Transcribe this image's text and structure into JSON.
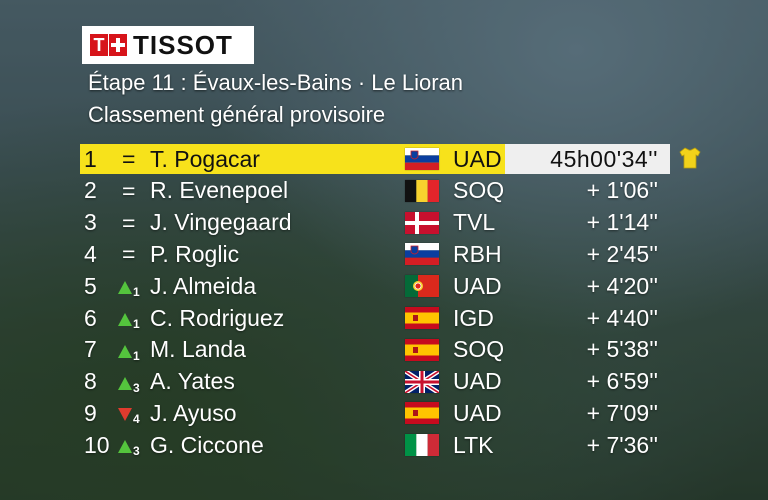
{
  "brand": "TISSOT",
  "stage_title": "Étape 11 : Évaux-les-Bains · Le Lioran",
  "subtitle": "Classement général provisoire",
  "rows": [
    {
      "pos": "1",
      "move": "=",
      "move_num": "",
      "name": "T. Pogacar",
      "flag": "SLO",
      "team": "UAD",
      "time": "45h00'34''"
    },
    {
      "pos": "2",
      "move": "=",
      "move_num": "",
      "name": "R. Evenepoel",
      "flag": "BEL",
      "team": "SOQ",
      "time": "+ 1'06''"
    },
    {
      "pos": "3",
      "move": "=",
      "move_num": "",
      "name": "J. Vingegaard",
      "flag": "DEN",
      "team": "TVL",
      "time": "+ 1'14''"
    },
    {
      "pos": "4",
      "move": "=",
      "move_num": "",
      "name": "P. Roglic",
      "flag": "SLO",
      "team": "RBH",
      "time": "+ 2'45''"
    },
    {
      "pos": "5",
      "move": "up",
      "move_num": "1",
      "name": "J. Almeida",
      "flag": "POR",
      "team": "UAD",
      "time": "+ 4'20''"
    },
    {
      "pos": "6",
      "move": "up",
      "move_num": "1",
      "name": "C. Rodriguez",
      "flag": "ESP",
      "team": "IGD",
      "time": "+ 4'40''"
    },
    {
      "pos": "7",
      "move": "up",
      "move_num": "1",
      "name": "M. Landa",
      "flag": "ESP",
      "team": "SOQ",
      "time": "+ 5'38''"
    },
    {
      "pos": "8",
      "move": "up",
      "move_num": "3",
      "name": "A. Yates",
      "flag": "GBR",
      "team": "UAD",
      "time": "+ 6'59''"
    },
    {
      "pos": "9",
      "move": "down",
      "move_num": "4",
      "name": "J. Ayuso",
      "flag": "ESP",
      "team": "UAD",
      "time": "+ 7'09''"
    },
    {
      "pos": "10",
      "move": "up",
      "move_num": "3",
      "name": "G. Ciccone",
      "flag": "ITA",
      "team": "LTK",
      "time": "+ 7'36''"
    }
  ],
  "colors": {
    "leader_bar": "#f7e21b",
    "time_bar": "#efefef",
    "up_arrow": "#54c43d",
    "down_arrow": "#e03b2e",
    "logo_red": "#d7141a"
  },
  "icons": {
    "leader_jersey": "yellow-jersey-icon"
  }
}
